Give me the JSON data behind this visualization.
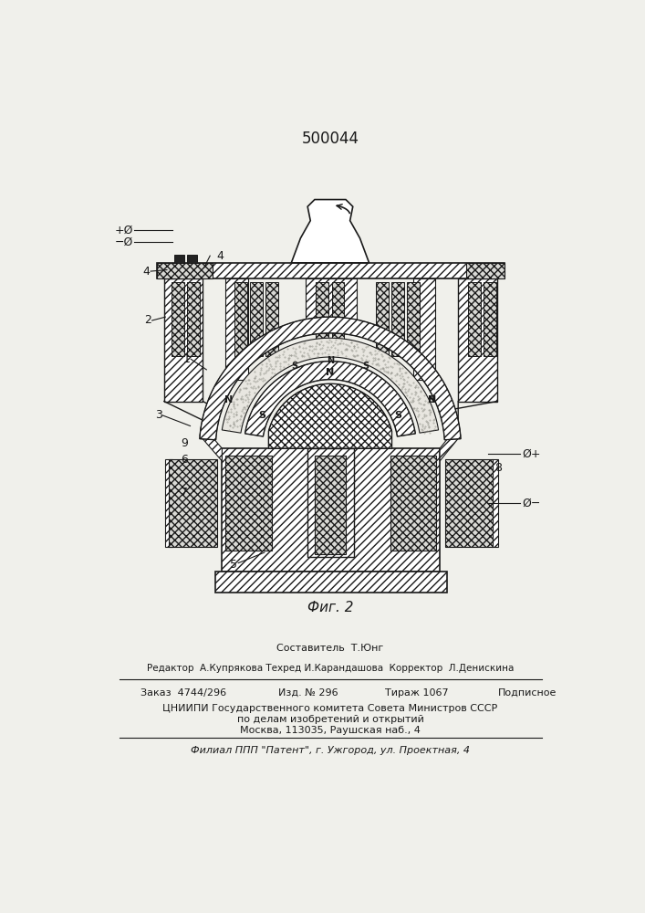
{
  "title": "500044",
  "fig_label": "Фиг. 2",
  "bg_color": "#f0f0eb",
  "line_color": "#1a1a1a",
  "sestavitel": "Составитель  Т.Юнг",
  "redaktor": "Редактор  А.Купрякова Техред И.Карандашова  Корректор  Л.Денискина",
  "zakaz_left": "Заказ  4744/296",
  "zakaz_mid": "Изд. № 296",
  "zakaz_tir": "Тираж 1067",
  "zakaz_pod": "Подписное",
  "cniipи": "ЦНИИПИ Государственного комитета Совета Министров СССР",
  "cniipи2": "по делам изобретений и открытий",
  "cniipи3": "Москва, 113035, Раушская наб., 4",
  "filial": "Филиал ППП \"Патент\", г. Ужгород, ул. Проектная, 4"
}
